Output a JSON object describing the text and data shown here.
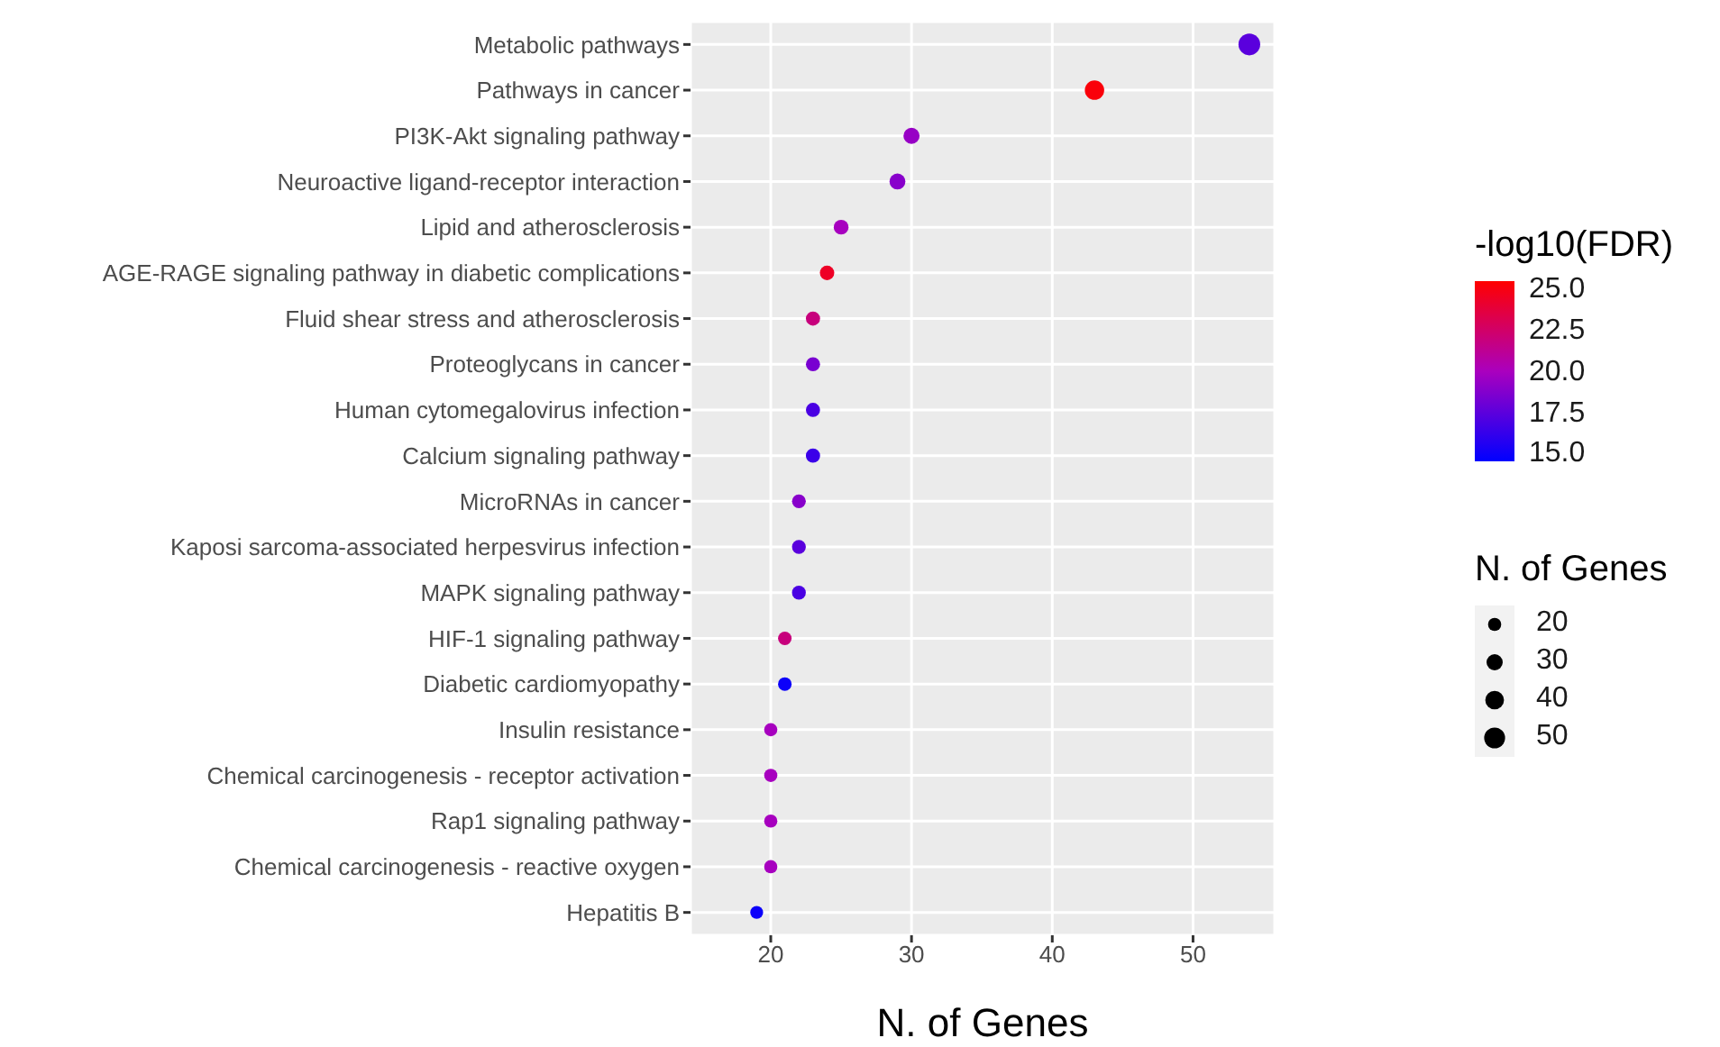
{
  "chart_data": {
    "type": "bubble",
    "categories": [
      "Metabolic pathways",
      "Pathways in cancer",
      "PI3K-Akt signaling pathway",
      "Neuroactive ligand-receptor interaction",
      "Lipid and atherosclerosis",
      "AGE-RAGE signaling pathway in diabetic complications",
      "Fluid shear stress and atherosclerosis",
      "Proteoglycans in cancer",
      "Human cytomegalovirus infection",
      "Calcium signaling pathway",
      "MicroRNAs in cancer",
      "Kaposi sarcoma-associated herpesvirus infection",
      "MAPK signaling pathway",
      "HIF-1 signaling pathway",
      "Diabetic cardiomyopathy",
      "Insulin resistance",
      "Chemical carcinogenesis - receptor activation",
      "Rap1 signaling pathway",
      "Chemical carcinogenesis - reactive oxygen",
      "Hepatitis B"
    ],
    "values": [
      54,
      43,
      30,
      29,
      25,
      24,
      23,
      23,
      23,
      23,
      22,
      22,
      22,
      21,
      21,
      20,
      20,
      20,
      20,
      19
    ],
    "sizes": [
      54,
      43,
      30,
      29,
      25,
      24,
      23,
      23,
      23,
      23,
      22,
      22,
      22,
      21,
      21,
      20,
      20,
      20,
      20,
      19
    ],
    "size_legend": [
      20,
      30,
      40,
      50
    ],
    "cvalues": [
      17.5,
      25.3,
      19.5,
      19,
      20,
      24.5,
      22,
      18.5,
      17,
      16.5,
      19,
      17.5,
      17,
      22,
      15,
      20,
      20,
      20,
      20,
      15
    ],
    "clim": [
      14.6,
      25.6
    ],
    "cticks": [
      {
        "value": 15,
        "label": "15.0"
      },
      17.5,
      {
        "value": 20,
        "label": "20.0"
      },
      22.5,
      {
        "value": 25,
        "label": "25.0"
      }
    ],
    "clabel": "-log10(FDR)",
    "legend_title": "N. of Genes",
    "xlabel": "N. of Genes",
    "orientation": "horizontal",
    "xlim": [
      14.3,
      55.8
    ],
    "xticks": [
      20,
      30,
      40,
      50
    ],
    "grid": true
  }
}
